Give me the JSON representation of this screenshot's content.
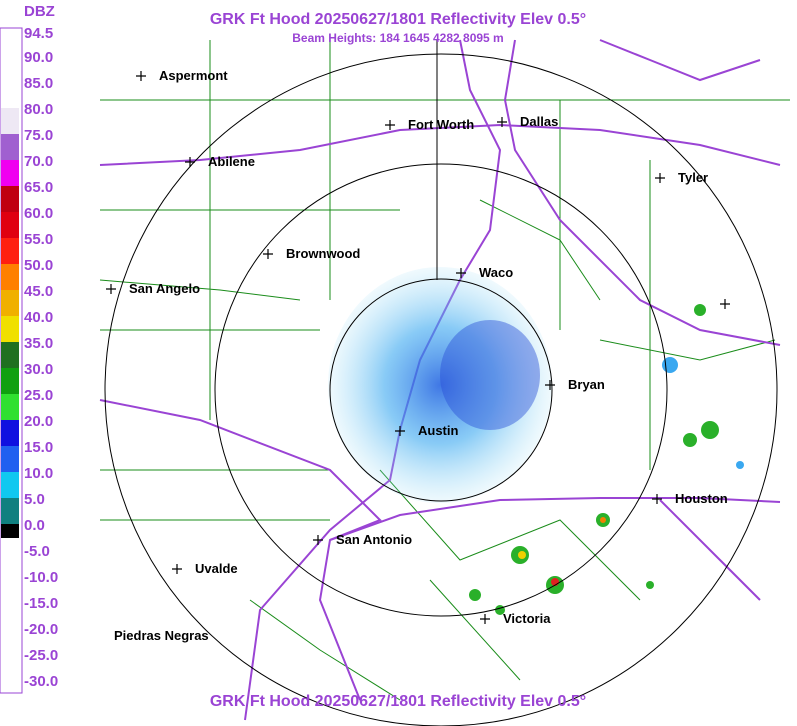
{
  "header": {
    "title": "GRK Ft Hood 20250627/1801 Reflectivity Elev 0.5°",
    "subtitle": "Beam Heights: 184 1645 4282 8095 m"
  },
  "legend": {
    "unit": "DBZ",
    "labels": [
      "94.5",
      "90.0",
      "85.0",
      "80.0",
      "75.0",
      "70.0",
      "65.0",
      "60.0",
      "55.0",
      "50.0",
      "45.0",
      "40.0",
      "35.0",
      "30.0",
      "25.0",
      "20.0",
      "15.0",
      "10.0",
      "5.0",
      "0.0",
      "-5.0",
      "-10.0",
      "-15.0",
      "-20.0",
      "-25.0",
      "-30.0"
    ]
  },
  "cities": [
    "Aspermont",
    "Fort Worth",
    "Dallas",
    "Abilene",
    "Tyler",
    "Brownwood",
    "Waco",
    "San Angelo",
    "Bryan",
    "Austin",
    "Houston",
    "San Antonio",
    "Uvalde",
    "Victoria",
    "Piedras Negras"
  ]
}
